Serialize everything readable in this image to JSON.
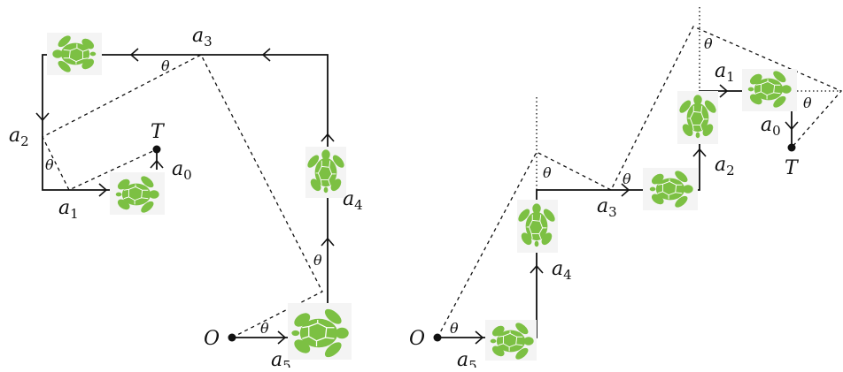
{
  "left_diagram": {
    "origin_label": "O",
    "target_label": "T",
    "angle_label": "θ",
    "actions": [
      {
        "base": "a",
        "sub": "0"
      },
      {
        "base": "a",
        "sub": "1"
      },
      {
        "base": "a",
        "sub": "2"
      },
      {
        "base": "a",
        "sub": "3"
      },
      {
        "base": "a",
        "sub": "4"
      },
      {
        "base": "a",
        "sub": "5"
      }
    ]
  },
  "right_diagram": {
    "origin_label": "O",
    "target_label": "T",
    "angle_label": "θ",
    "actions": [
      {
        "base": "a",
        "sub": "0"
      },
      {
        "base": "a",
        "sub": "1"
      },
      {
        "base": "a",
        "sub": "2"
      },
      {
        "base": "a",
        "sub": "3"
      },
      {
        "base": "a",
        "sub": "4"
      },
      {
        "base": "a",
        "sub": "5"
      }
    ]
  },
  "icons": {
    "turtle": "turtle-icon"
  },
  "colors": {
    "turtle": "#7cc043",
    "line": "#111111"
  }
}
